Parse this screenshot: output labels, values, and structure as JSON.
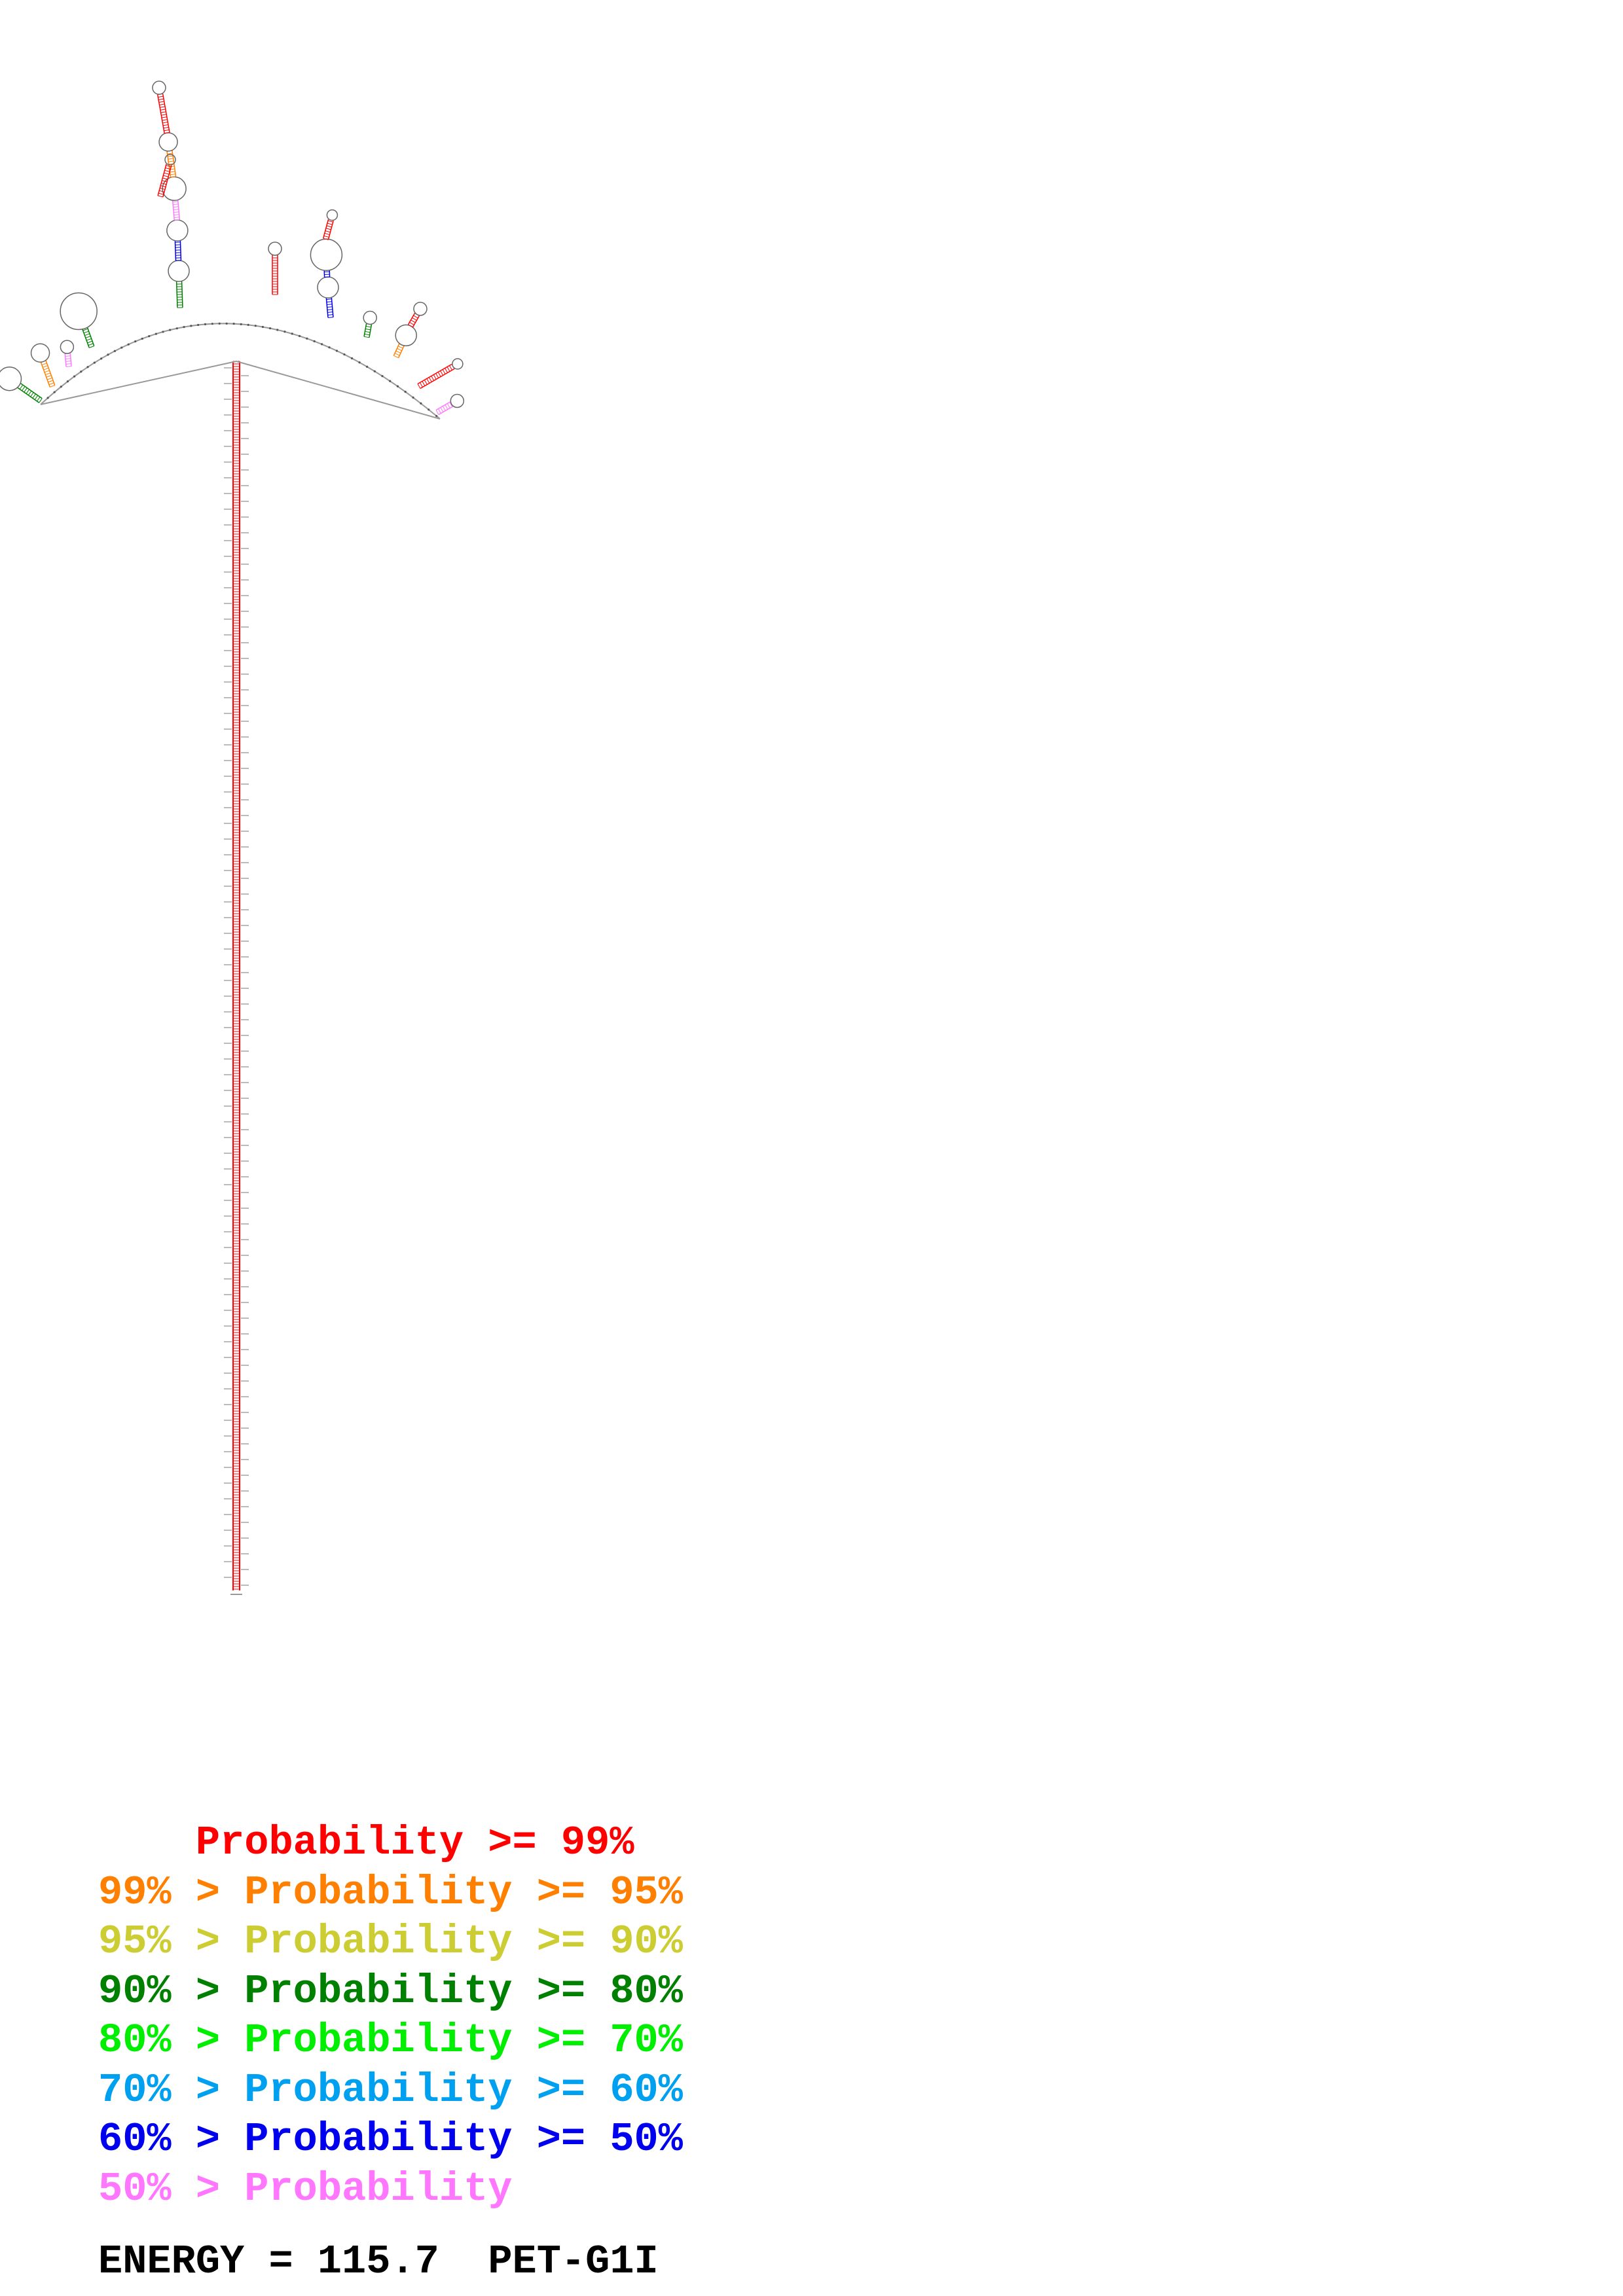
{
  "legend": {
    "rows": [
      {
        "prefix": "    ",
        "text": "    Probability >= 99%",
        "color": "#ff0000"
      },
      {
        "text": "99% > Probability >= 95%",
        "color": "#ff7f00"
      },
      {
        "text": "95% > Probability >= 90%",
        "color": "#cccc33"
      },
      {
        "text": "90% > Probability >= 80%",
        "color": "#008000"
      },
      {
        "text": "80% > Probability >= 70%",
        "color": "#00ee00"
      },
      {
        "text": "70% > Probability >= 60%",
        "color": "#00a0f0"
      },
      {
        "text": "60% > Probability >= 50%",
        "color": "#0000ee"
      },
      {
        "text": "50% > Probability",
        "color": "#ff77ff"
      }
    ]
  },
  "footer": {
    "energy_label": "ENERGY = 115.7",
    "name": "PET-G1I"
  },
  "colors": {
    "backbone": "#999999",
    "stem_main": "#ff0000",
    "stem_orange": "#ff7f00",
    "stem_green": "#008000",
    "stem_blue": "#0000ee",
    "stem_light": "#ff77ff"
  }
}
